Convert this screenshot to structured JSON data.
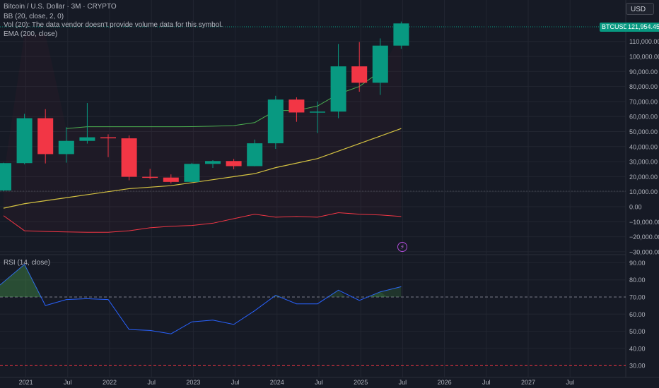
{
  "header": {
    "symbol_line": "Bitcoin / U.S. Dollar · 3M · CRYPTO",
    "bb_line": "BB (20, close, 2, 0)",
    "vol_line": "Vol (20): The data vendor doesn't provide volume data for this symbol.",
    "ema_line": "EMA (200, close)",
    "currency": "USD"
  },
  "last_price": {
    "ticker": "BTCUSD",
    "value": "121,954.45"
  },
  "rsi_pane": {
    "label": "RSI (14, close)"
  },
  "colors": {
    "background": "#161a25",
    "grid": "#222631",
    "up": "#089981",
    "down": "#f23645",
    "bb_upper": "#4caf50",
    "bb_lower": "#f23645",
    "ema": "#d4c242",
    "rsi": "#2962ff",
    "text": "#b2b5be"
  },
  "chart_data": [
    {
      "type": "candlestick",
      "title": "Bitcoin / U.S. Dollar · 3M · CRYPTO",
      "interval": "3M",
      "currency": "USD",
      "candles": [
        {
          "t": "2020-10",
          "o": 10800,
          "h": 29300,
          "l": 10400,
          "c": 29000
        },
        {
          "t": "2021-01",
          "o": 29000,
          "h": 61800,
          "l": 28200,
          "c": 58900
        },
        {
          "t": "2021-04",
          "o": 58900,
          "h": 64900,
          "l": 28800,
          "c": 35000
        },
        {
          "t": "2021-07",
          "o": 35000,
          "h": 52900,
          "l": 29300,
          "c": 43800
        },
        {
          "t": "2021-10",
          "o": 43800,
          "h": 69000,
          "l": 42000,
          "c": 46200
        },
        {
          "t": "2022-01",
          "o": 46200,
          "h": 48200,
          "l": 33000,
          "c": 45500
        },
        {
          "t": "2022-04",
          "o": 45500,
          "h": 47400,
          "l": 17600,
          "c": 19900
        },
        {
          "t": "2022-07",
          "o": 19900,
          "h": 25200,
          "l": 18200,
          "c": 19400
        },
        {
          "t": "2022-10",
          "o": 19400,
          "h": 21500,
          "l": 15500,
          "c": 16500
        },
        {
          "t": "2023-01",
          "o": 16500,
          "h": 29200,
          "l": 16500,
          "c": 28500
        },
        {
          "t": "2023-04",
          "o": 28500,
          "h": 31000,
          "l": 25800,
          "c": 30400
        },
        {
          "t": "2023-07",
          "o": 30400,
          "h": 31800,
          "l": 24900,
          "c": 27000
        },
        {
          "t": "2023-10",
          "o": 27000,
          "h": 44700,
          "l": 26900,
          "c": 42200
        },
        {
          "t": "2024-01",
          "o": 42200,
          "h": 73800,
          "l": 38500,
          "c": 71300
        },
        {
          "t": "2024-04",
          "o": 71300,
          "h": 72800,
          "l": 56500,
          "c": 62700
        },
        {
          "t": "2024-07",
          "o": 62700,
          "h": 70000,
          "l": 49000,
          "c": 63300
        },
        {
          "t": "2024-10",
          "o": 63300,
          "h": 108300,
          "l": 58900,
          "c": 93400
        },
        {
          "t": "2025-01",
          "o": 93400,
          "h": 109600,
          "l": 76500,
          "c": 82500
        },
        {
          "t": "2025-04",
          "o": 82500,
          "h": 112000,
          "l": 74400,
          "c": 107200
        },
        {
          "t": "2025-07",
          "o": 107200,
          "h": 123200,
          "l": 105100,
          "c": 121954.45
        }
      ],
      "bb_upper": [
        null,
        null,
        null,
        52000,
        53200,
        53200,
        53200,
        53200,
        53200,
        53300,
        53600,
        54000,
        56000,
        64000,
        64000,
        67000,
        75000,
        80000,
        90000,
        null
      ],
      "bb_lower": [
        -6000,
        -16000,
        -16500,
        -16800,
        -17000,
        -17000,
        -16000,
        -14000,
        -13000,
        -12500,
        -11000,
        -8000,
        -5000,
        -7000,
        -6500,
        -7000,
        -4000,
        -5000,
        -5500,
        -6500
      ],
      "ema200": [
        -1000,
        2000,
        4000,
        6000,
        8000,
        10000,
        12000,
        13000,
        14000,
        16000,
        18000,
        20000,
        22000,
        26000,
        29000,
        32000,
        37000,
        42000,
        47000,
        52000
      ],
      "y_ticks": [
        "110,000.00",
        "100,000.00",
        "90,000.00",
        "80,000.00",
        "70,000.00",
        "60,000.00",
        "50,000.00",
        "40,000.00",
        "30,000.00",
        "20,000.00",
        "10,000.00",
        "0.00",
        "−10,000.00",
        "−20,000.00",
        "−30,000.00"
      ],
      "x_ticks": [
        "2021",
        "Jul",
        "2022",
        "Jul",
        "2023",
        "Jul",
        "2024",
        "Jul",
        "2025",
        "Jul",
        "2026",
        "Jul",
        "2027",
        "Jul"
      ]
    },
    {
      "type": "line",
      "title": "RSI (14, close)",
      "values": [
        null,
        89,
        65,
        68.5,
        69,
        68.5,
        51,
        50.5,
        48.5,
        55.5,
        56.5,
        54,
        62,
        71,
        66,
        66,
        74,
        68,
        73,
        76
      ],
      "y_ticks": [
        "90.00",
        "80.00",
        "70.00",
        "60.00",
        "50.00",
        "40.00",
        "30.00"
      ],
      "overbought": 70,
      "oversold": 30
    }
  ]
}
